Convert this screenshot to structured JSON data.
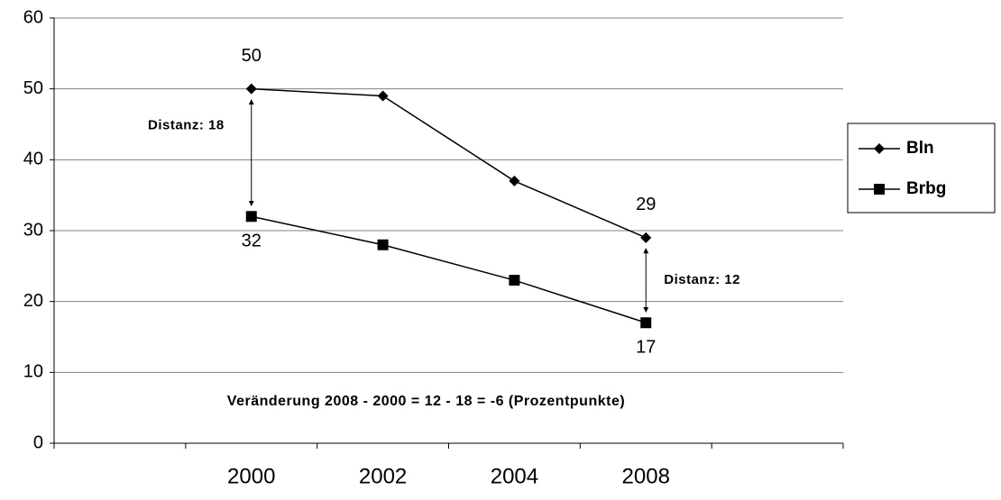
{
  "chart_data": {
    "type": "line",
    "categories": [
      null,
      "2000",
      "2002",
      "2004",
      "2008",
      null
    ],
    "series": [
      {
        "name": "Bln",
        "color": "#000000",
        "marker": "diamond",
        "values": [
          null,
          50,
          49,
          37,
          29,
          null
        ],
        "value_labels": [
          null,
          "50",
          null,
          null,
          "29",
          null
        ]
      },
      {
        "name": "Brbg",
        "color": "#000000",
        "marker": "square",
        "values": [
          null,
          32,
          28,
          23,
          17,
          null
        ],
        "value_labels": [
          null,
          "32",
          null,
          null,
          "17",
          null
        ]
      }
    ],
    "annotations": [
      "Distanz: 18",
      "Distanz: 12",
      "Veränderung 2008 - 2000 = 12 - 18 = -6 (Prozentpunkte)"
    ],
    "ylim": [
      0,
      60
    ],
    "yticks": [
      0,
      10,
      20,
      30,
      40,
      50,
      60
    ],
    "grid": true,
    "legend": "right"
  }
}
